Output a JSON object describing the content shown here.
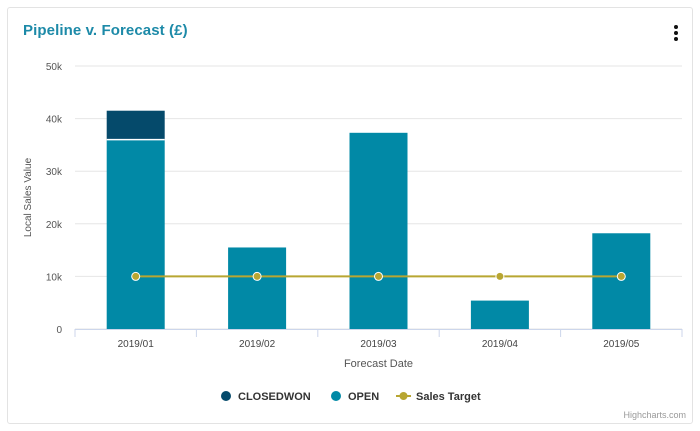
{
  "header": {
    "title": "Pipeline v. Forecast (£)",
    "menu_icon": "kebab-menu-icon"
  },
  "credit": "Highcharts.com",
  "chart_data": {
    "type": "bar",
    "stacked": true,
    "title": "Pipeline v. Forecast (£)",
    "xlabel": "Forecast Date",
    "ylabel": "Local Sales Value",
    "categories": [
      "2019/01",
      "2019/02",
      "2019/03",
      "2019/04",
      "2019/05"
    ],
    "ylim": [
      0,
      50000
    ],
    "yticks": [
      0,
      10000,
      20000,
      30000,
      40000,
      50000
    ],
    "ytick_labels": [
      "0",
      "10k",
      "20k",
      "30k",
      "40k",
      "50k"
    ],
    "grid": true,
    "legend_placement": "bottom-center",
    "series": [
      {
        "name": "CLOSEDWON",
        "kind": "bar",
        "color": "#054a6b",
        "values": [
          5500,
          0,
          0,
          0,
          0
        ]
      },
      {
        "name": "OPEN",
        "kind": "bar",
        "color": "#0189a6",
        "values": [
          36000,
          15500,
          37300,
          5400,
          18200
        ]
      },
      {
        "name": "Sales Target",
        "kind": "line",
        "color": "#b8a632",
        "values": [
          10000,
          10000,
          10000,
          10000,
          10000
        ]
      }
    ]
  }
}
